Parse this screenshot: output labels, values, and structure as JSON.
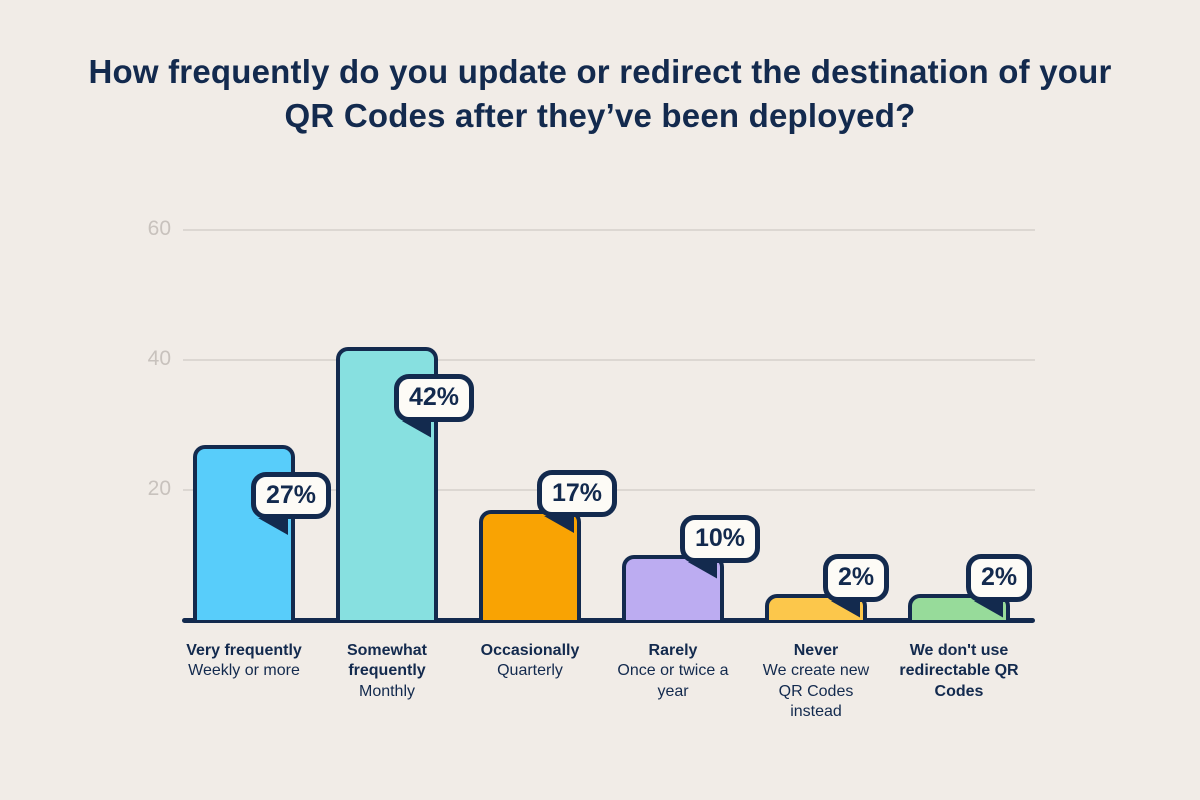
{
  "chart_data": {
    "type": "bar",
    "title": "How frequently do you update or redirect the destination of your QR Codes after they’ve been deployed?",
    "values": [
      27,
      42,
      17,
      10,
      2,
      2
    ],
    "data_labels": [
      "27%",
      "42%",
      "17%",
      "10%",
      "2%",
      "2%"
    ],
    "categories": [
      {
        "label": "Very frequently",
        "sublabel": "Weekly or more",
        "label_lines": [
          "Very frequently"
        ],
        "sublabel_lines": [
          "Weekly or more"
        ]
      },
      {
        "label": "Somewhat frequently",
        "sublabel": "Monthly",
        "label_lines": [
          "Somewhat",
          "frequently"
        ],
        "sublabel_lines": [
          "Monthly"
        ]
      },
      {
        "label": "Occasionally",
        "sublabel": "Quarterly",
        "label_lines": [
          "Occasionally"
        ],
        "sublabel_lines": [
          "Quarterly"
        ]
      },
      {
        "label": "Rarely",
        "sublabel": "Once or twice a year",
        "label_lines": [
          "Rarely"
        ],
        "sublabel_lines": [
          "Once or twice a",
          "year"
        ]
      },
      {
        "label": "Never",
        "sublabel": "We create new QR Codes instead",
        "label_lines": [
          "Never"
        ],
        "sublabel_lines": [
          "We create new",
          "QR Codes",
          "instead"
        ]
      },
      {
        "label": "We don’t use redirectable QR Codes",
        "sublabel": "",
        "label_lines": [
          "We don't use",
          "redirectable QR",
          "Codes"
        ],
        "sublabel_lines": []
      }
    ],
    "bar_colors": [
      "#58cdfa",
      "#87e0e0",
      "#f9a303",
      "#bcacf1",
      "#fcc74b",
      "#97db9a"
    ],
    "xlabel": "",
    "ylabel": "",
    "ylim": [
      0,
      60
    ],
    "yticks": [
      "20",
      "40",
      "60"
    ],
    "grid": "on",
    "legend": "none"
  },
  "colors": {
    "background": "#f1ece7",
    "text_navy": "#132a4e",
    "badge_background": "#fdfbf6",
    "gridline": "#dcd7d2",
    "tick_label": "#c8c2bd"
  }
}
